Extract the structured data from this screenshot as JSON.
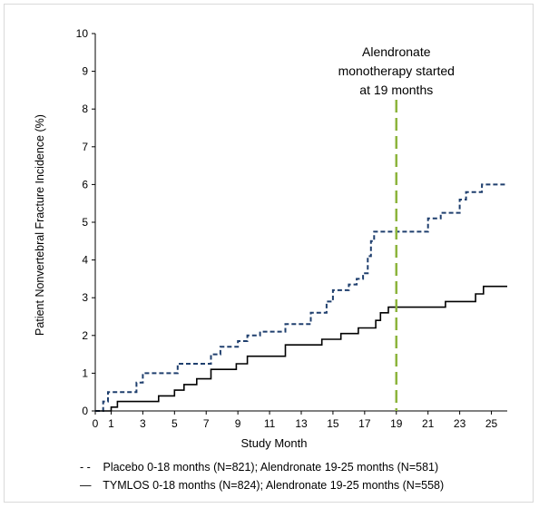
{
  "chart_data": {
    "type": "line",
    "xlabel": "Study Month",
    "ylabel": "Patient Nonvertebral  Fracture Incidence (%)",
    "xlim": [
      0,
      26
    ],
    "ylim": [
      0,
      10
    ],
    "x_ticks": [
      0,
      1,
      3,
      5,
      7,
      9,
      11,
      13,
      15,
      17,
      19,
      21,
      23,
      25
    ],
    "y_ticks": [
      0,
      1,
      2,
      3,
      4,
      5,
      6,
      7,
      8,
      9,
      10
    ],
    "grid": false,
    "legend_position": "bottom",
    "annotation": {
      "x": 19,
      "lines": [
        "Alendronate",
        "monotherapy  started",
        "at 19 months"
      ],
      "color": "#8cb43c"
    },
    "series": [
      {
        "name": "Placebo 0-18  months (N=821);  Alendronate 19-25  months (N=581)",
        "legend_symbol": "- -",
        "style": "dashed",
        "color": "#1f3f6e",
        "points": [
          [
            0,
            0
          ],
          [
            0.5,
            0
          ],
          [
            0.5,
            0.25
          ],
          [
            0.8,
            0.25
          ],
          [
            0.8,
            0.5
          ],
          [
            2.6,
            0.5
          ],
          [
            2.6,
            0.75
          ],
          [
            3,
            0.75
          ],
          [
            3,
            1.0
          ],
          [
            5.2,
            1.0
          ],
          [
            5.2,
            1.25
          ],
          [
            7.3,
            1.25
          ],
          [
            7.3,
            1.5
          ],
          [
            7.9,
            1.5
          ],
          [
            7.9,
            1.7
          ],
          [
            9,
            1.7
          ],
          [
            9,
            1.85
          ],
          [
            9.6,
            1.85
          ],
          [
            9.6,
            2.0
          ],
          [
            10.4,
            2.0
          ],
          [
            10.4,
            2.1
          ],
          [
            12,
            2.1
          ],
          [
            12,
            2.3
          ],
          [
            13.6,
            2.3
          ],
          [
            13.6,
            2.6
          ],
          [
            14.6,
            2.6
          ],
          [
            14.6,
            2.9
          ],
          [
            15,
            2.9
          ],
          [
            15,
            3.2
          ],
          [
            16,
            3.2
          ],
          [
            16,
            3.35
          ],
          [
            16.5,
            3.35
          ],
          [
            16.5,
            3.5
          ],
          [
            16.9,
            3.5
          ],
          [
            16.9,
            3.65
          ],
          [
            17.2,
            3.65
          ],
          [
            17.2,
            4.1
          ],
          [
            17.4,
            4.1
          ],
          [
            17.4,
            4.5
          ],
          [
            17.6,
            4.5
          ],
          [
            17.6,
            4.75
          ],
          [
            21,
            4.75
          ],
          [
            21,
            5.1
          ],
          [
            21.8,
            5.1
          ],
          [
            21.8,
            5.25
          ],
          [
            23,
            5.25
          ],
          [
            23,
            5.6
          ],
          [
            23.4,
            5.6
          ],
          [
            23.4,
            5.8
          ],
          [
            24.4,
            5.8
          ],
          [
            24.4,
            6.0
          ],
          [
            26,
            6.0
          ]
        ]
      },
      {
        "name": "TYMLOS 0-18  months (N=824);  Alendronate 19-25  months (N=558)",
        "legend_symbol": "—",
        "style": "solid",
        "color": "#000000",
        "points": [
          [
            0,
            0
          ],
          [
            1,
            0
          ],
          [
            1,
            0.1
          ],
          [
            1.4,
            0.1
          ],
          [
            1.4,
            0.25
          ],
          [
            4,
            0.25
          ],
          [
            4,
            0.4
          ],
          [
            5,
            0.4
          ],
          [
            5,
            0.55
          ],
          [
            5.6,
            0.55
          ],
          [
            5.6,
            0.7
          ],
          [
            6.4,
            0.7
          ],
          [
            6.4,
            0.85
          ],
          [
            7.3,
            0.85
          ],
          [
            7.3,
            1.1
          ],
          [
            8.9,
            1.1
          ],
          [
            8.9,
            1.25
          ],
          [
            9.6,
            1.25
          ],
          [
            9.6,
            1.45
          ],
          [
            12,
            1.45
          ],
          [
            12,
            1.75
          ],
          [
            14.3,
            1.75
          ],
          [
            14.3,
            1.9
          ],
          [
            15.5,
            1.9
          ],
          [
            15.5,
            2.05
          ],
          [
            16.6,
            2.05
          ],
          [
            16.6,
            2.2
          ],
          [
            17.7,
            2.2
          ],
          [
            17.7,
            2.4
          ],
          [
            18,
            2.4
          ],
          [
            18,
            2.6
          ],
          [
            18.5,
            2.6
          ],
          [
            18.5,
            2.75
          ],
          [
            22.1,
            2.75
          ],
          [
            22.1,
            2.9
          ],
          [
            24,
            2.9
          ],
          [
            24,
            3.1
          ],
          [
            24.5,
            3.1
          ],
          [
            24.5,
            3.3
          ],
          [
            26,
            3.3
          ]
        ]
      }
    ]
  }
}
